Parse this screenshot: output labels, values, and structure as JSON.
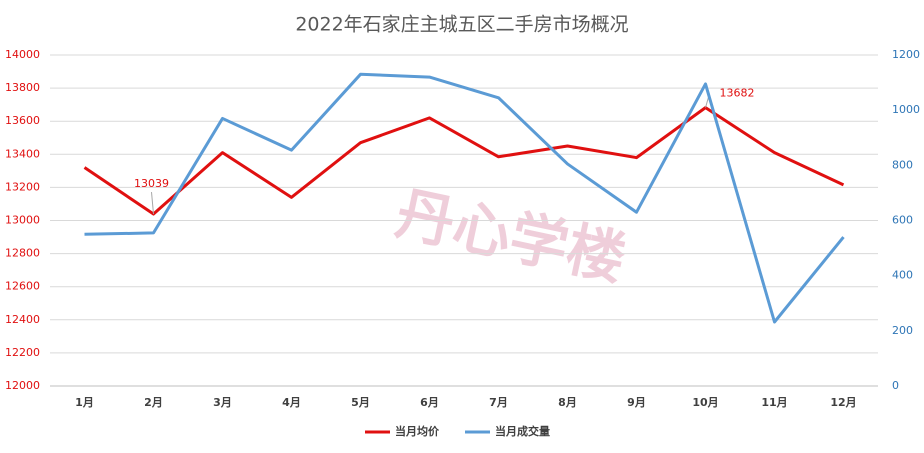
{
  "chart_data": {
    "type": "line",
    "title": "2022年石家庄主城五区二手房市场概况",
    "watermark": "丹心学楼",
    "categories": [
      "1月",
      "2月",
      "3月",
      "4月",
      "5月",
      "6月",
      "7月",
      "8月",
      "9月",
      "10月",
      "11月",
      "12月"
    ],
    "series": [
      {
        "name": "当月均价",
        "color": "#e01010",
        "axis": "y",
        "values": [
          13320,
          13039,
          13410,
          13140,
          13470,
          13620,
          13385,
          13450,
          13380,
          13682,
          13410,
          13215
        ],
        "value_labels": [
          null,
          "13039",
          null,
          null,
          null,
          null,
          null,
          null,
          null,
          "13682",
          null,
          null
        ]
      },
      {
        "name": "当月成交量",
        "color": "#5b9bd5",
        "axis": "y2",
        "values": [
          550,
          555,
          970,
          855,
          1130,
          1120,
          1045,
          805,
          630,
          1095,
          232,
          540
        ]
      }
    ],
    "ylim": [
      12000,
      14000
    ],
    "yticks": [
      12000,
      12200,
      12400,
      12600,
      12800,
      13000,
      13200,
      13400,
      13600,
      13800,
      14000
    ],
    "y2lim": [
      0,
      1200
    ],
    "y2ticks": [
      0,
      200,
      400,
      600,
      800,
      1000,
      1200
    ],
    "ytick_color": "#e01010",
    "y2tick_color": "#2e75b6",
    "grid": true,
    "legend": "bottom"
  }
}
